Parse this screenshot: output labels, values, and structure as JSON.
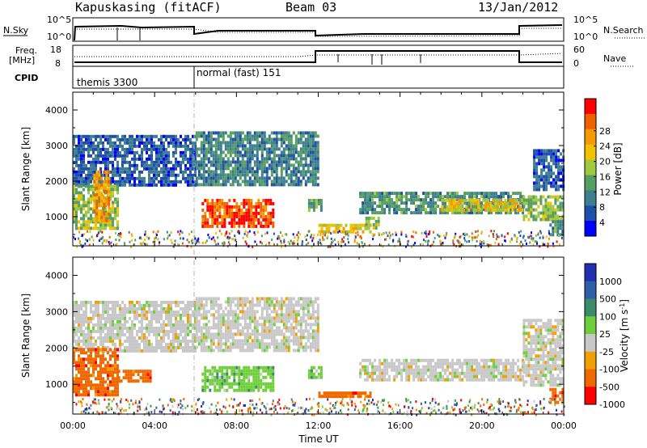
{
  "header": {
    "station": "Kapuskasing (fitACF)",
    "beam": "Beam 03",
    "date": "13/Jan/2012"
  },
  "summary_panels": {
    "nsky": {
      "left_label": "N.Sky",
      "left_ticks": [
        "10^5",
        "10^0"
      ],
      "right_label": "N.Search",
      "right_ticks": [
        "10^5",
        "10^0"
      ]
    },
    "freq": {
      "left_label": [
        "Freq.",
        "[MHz]"
      ],
      "left_ticks": [
        "18",
        "8"
      ],
      "right_label": "Nave",
      "right_ticks": [
        "60",
        "0"
      ]
    },
    "cpid": {
      "label": "CPID",
      "segments": [
        "themis 3300",
        "normal (fast) 151"
      ]
    }
  },
  "colors": {
    "power": [
      "#0000ff",
      "#1f4fa8",
      "#3d7f8f",
      "#55a060",
      "#a0c840",
      "#f2c200",
      "#f59a00",
      "#f06000",
      "#ff0000"
    ],
    "velocity": [
      "#2030b0",
      "#2e5fa8",
      "#3d8a6a",
      "#6fcf3a",
      "#c8c8c8",
      "#f0a000",
      "#f06800",
      "#ff0000"
    ]
  },
  "chart_data": [
    {
      "type": "heatmap",
      "panel": "Power",
      "ylabel": "Slant Range [km]",
      "xlabel": "Time UT",
      "x_ticks": [
        "00:00",
        "04:00",
        "08:00",
        "12:00",
        "16:00",
        "20:00",
        "00:00"
      ],
      "xlim_hours": [
        0,
        24
      ],
      "ylim_km": [
        180,
        4500
      ],
      "y_ticks": [
        1000,
        2000,
        3000,
        4000
      ],
      "colorbar": {
        "label": "Power [dB]",
        "ticks": [
          4,
          8,
          12,
          16,
          20,
          24,
          28
        ],
        "range": [
          0,
          30
        ]
      },
      "regions": [
        {
          "t0": 0.0,
          "t1": 6.0,
          "r0": 1900,
          "r1": 3300,
          "level": 6
        },
        {
          "t0": 0.0,
          "t1": 2.2,
          "r0": 700,
          "r1": 1900,
          "level": 14
        },
        {
          "t0": 1.0,
          "t1": 1.8,
          "r0": 900,
          "r1": 2300,
          "level": 22
        },
        {
          "t0": 6.0,
          "t1": 12.0,
          "r0": 1900,
          "r1": 3400,
          "level": 9
        },
        {
          "t0": 6.3,
          "t1": 9.8,
          "r0": 750,
          "r1": 1500,
          "level": 26
        },
        {
          "t0": 11.5,
          "t1": 12.1,
          "r0": 1200,
          "r1": 1500,
          "level": 12
        },
        {
          "t0": 12.0,
          "t1": 14.5,
          "r0": 600,
          "r1": 800,
          "level": 18
        },
        {
          "t0": 14.3,
          "t1": 15.0,
          "r0": 700,
          "r1": 1000,
          "level": 14
        },
        {
          "t0": 14.0,
          "t1": 22.0,
          "r0": 1150,
          "r1": 1700,
          "level": 10
        },
        {
          "t0": 18.0,
          "t1": 22.0,
          "r0": 1200,
          "r1": 1500,
          "level": 18
        },
        {
          "t0": 22.0,
          "t1": 24.0,
          "r0": 900,
          "r1": 1600,
          "level": 14
        },
        {
          "t0": 22.5,
          "t1": 24.0,
          "r0": 1800,
          "r1": 2900,
          "level": 6
        },
        {
          "t0": 23.3,
          "t1": 24.0,
          "r0": 500,
          "r1": 900,
          "level": 10
        }
      ]
    },
    {
      "type": "heatmap",
      "panel": "Velocity",
      "ylabel": "Slant Range [km]",
      "xlabel": "Time UT",
      "x_ticks": [
        "00:00",
        "04:00",
        "08:00",
        "12:00",
        "16:00",
        "20:00",
        "00:00"
      ],
      "xlim_hours": [
        0,
        24
      ],
      "ylim_km": [
        180,
        4500
      ],
      "y_ticks": [
        1000,
        2000,
        3000,
        4000
      ],
      "colorbar": {
        "label": "Velocity [m s^-1]",
        "ticks": [
          "1000",
          "500",
          "100",
          "25",
          "-25",
          "-100",
          "-500",
          "-1000"
        ]
      },
      "regions": [
        {
          "t0": 0.0,
          "t1": 6.0,
          "r0": 1900,
          "r1": 3300,
          "level": 4
        },
        {
          "t0": 0.0,
          "t1": 2.2,
          "r0": 700,
          "r1": 2000,
          "level": 6
        },
        {
          "t0": 2.2,
          "t1": 3.8,
          "r0": 1100,
          "r1": 1400,
          "level": 6
        },
        {
          "t0": 6.0,
          "t1": 12.0,
          "r0": 1900,
          "r1": 3400,
          "level": 4
        },
        {
          "t0": 6.3,
          "t1": 9.8,
          "r0": 800,
          "r1": 1500,
          "level": 3
        },
        {
          "t0": 11.5,
          "t1": 12.1,
          "r0": 1200,
          "r1": 1500,
          "level": 3
        },
        {
          "t0": 12.0,
          "t1": 14.5,
          "r0": 650,
          "r1": 800,
          "level": 6
        },
        {
          "t0": 14.0,
          "t1": 22.0,
          "r0": 1150,
          "r1": 1700,
          "level": 4
        },
        {
          "t0": 22.0,
          "t1": 24.0,
          "r0": 1000,
          "r1": 2800,
          "level": 4
        },
        {
          "t0": 23.3,
          "t1": 24.0,
          "r0": 500,
          "r1": 900,
          "level": 6
        }
      ]
    }
  ]
}
